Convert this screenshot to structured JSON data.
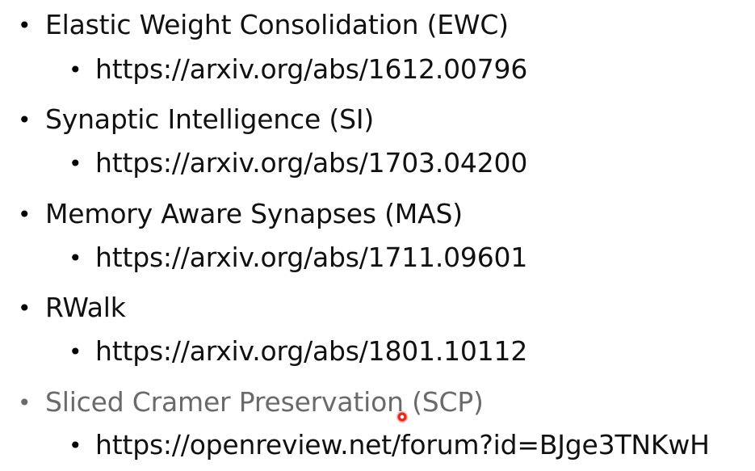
{
  "items": [
    {
      "title": "Elastic Weight Consolidation (EWC)",
      "link": "https://arxiv.org/abs/1612.00796"
    },
    {
      "title": "Synaptic Intelligence (SI)",
      "link": "https://arxiv.org/abs/1703.04200"
    },
    {
      "title": "Memory Aware Synapses (MAS)",
      "link": "https://arxiv.org/abs/1711.09601"
    },
    {
      "title": "RWalk",
      "link": "https://arxiv.org/abs/1801.10112"
    },
    {
      "title": "Sliced Cramer Preservation (SCP)",
      "link": "https://openreview.net/forum?id=BJge3TNKwH"
    }
  ],
  "bullet_glyph": "•",
  "colors": {
    "text": "#111111",
    "dimmed_text": "#6a6a6a",
    "pointer": "#e8261a"
  }
}
